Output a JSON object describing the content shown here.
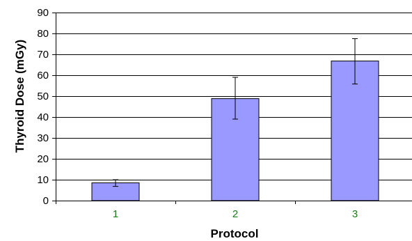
{
  "chart_data": {
    "type": "bar",
    "title": "",
    "xlabel": "Protocol",
    "ylabel": "Thyroid Dose (mGy)",
    "categories": [
      "1",
      "2",
      "3"
    ],
    "values": [
      8.5,
      48.8,
      66.8
    ],
    "error_low": [
      6.8,
      39.0,
      55.8
    ],
    "error_high": [
      10.0,
      59.0,
      77.5
    ],
    "ylim": [
      0,
      90
    ],
    "yticks": [
      "0",
      "10",
      "20",
      "30",
      "40",
      "50",
      "60",
      "70",
      "80",
      "90"
    ],
    "grid": true,
    "legend": "none",
    "colors": {
      "bar_fill": "#9999ff",
      "bar_stroke": "#000000",
      "category_label": "#1a7a1a",
      "grid": "#000000"
    }
  }
}
